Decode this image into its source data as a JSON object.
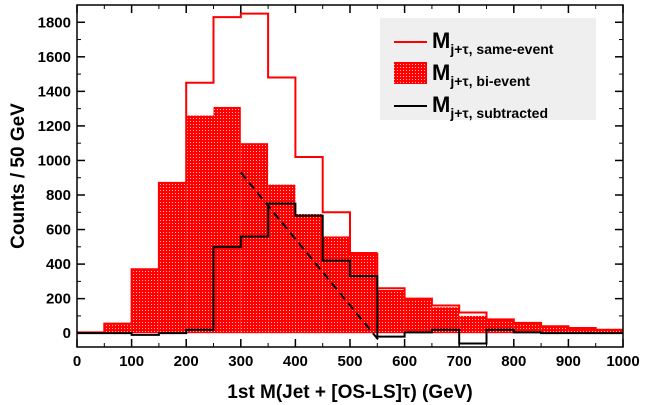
{
  "chart_data": {
    "type": "histogram",
    "title": "",
    "xlabel": "1st M(Jet + [OS-LS]τ) (GeV)",
    "ylabel": "Counts / 50 GeV",
    "xlim": [
      0,
      1000
    ],
    "ylim": [
      -80,
      1900
    ],
    "x_ticks": [
      0,
      100,
      200,
      300,
      400,
      500,
      600,
      700,
      800,
      900,
      1000
    ],
    "y_ticks": [
      0,
      200,
      400,
      600,
      800,
      1000,
      1200,
      1400,
      1600,
      1800
    ],
    "bin_edges": [
      0,
      50,
      100,
      150,
      200,
      250,
      300,
      350,
      400,
      450,
      500,
      550,
      600,
      650,
      700,
      750,
      800,
      850,
      900,
      950,
      1000
    ],
    "series": [
      {
        "name": "bi-event",
        "label_main": "M",
        "label_sub": "j+τ, bi-event",
        "style": "filled",
        "color": "#ff0000",
        "values": [
          5,
          50,
          370,
          870,
          1260,
          1310,
          1100,
          860,
          690,
          560,
          470,
          250,
          200,
          150,
          100,
          80,
          60,
          40,
          30,
          20
        ]
      },
      {
        "name": "same-event",
        "label_main": "M",
        "label_sub": "j+τ, same-event",
        "style": "line",
        "color": "#ff0000",
        "values": [
          5,
          55,
          370,
          870,
          1450,
          1830,
          1850,
          1480,
          1020,
          700,
          460,
          260,
          200,
          160,
          120,
          80,
          60,
          40,
          30,
          20
        ]
      },
      {
        "name": "subtracted",
        "label_main": "M",
        "label_sub": "j+τ, subtracted",
        "style": "line",
        "color": "#000000",
        "values": [
          0,
          0,
          -10,
          0,
          20,
          500,
          560,
          750,
          680,
          420,
          330,
          -20,
          5,
          20,
          -60,
          20,
          5,
          0,
          0,
          0
        ]
      }
    ],
    "fit_line": {
      "x": [
        300,
        555
      ],
      "y": [
        930,
        -50
      ],
      "style": "dashed",
      "color": "#000000"
    },
    "legend_position": "top-right"
  }
}
